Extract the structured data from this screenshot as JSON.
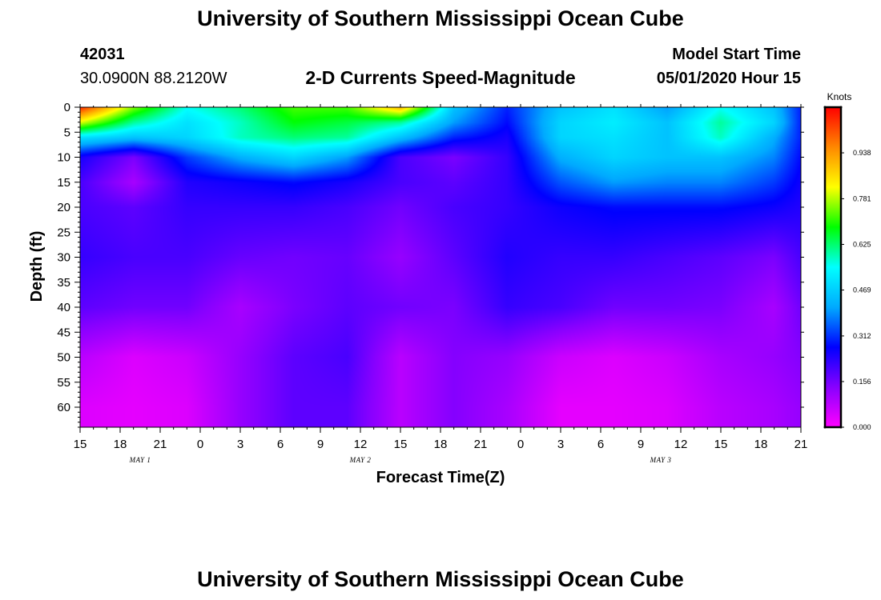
{
  "page": {
    "title_top": "University of Southern Mississippi Ocean Cube",
    "title_bottom": "University of Southern Mississippi Ocean Cube"
  },
  "header": {
    "station_id": "42031",
    "location": "30.0900N 88.2120W",
    "product": "2-D Currents Speed-Magnitude",
    "model_label": "Model Start Time",
    "model_time": "05/01/2020 Hour 15"
  },
  "chart_data": {
    "type": "heatmap",
    "title": "2-D Currents Speed-Magnitude",
    "xlabel": "Forecast Time(Z)",
    "ylabel": "Depth (ft)",
    "x_hours": [
      0,
      3,
      6,
      9,
      12,
      15,
      18,
      21,
      24,
      27,
      30,
      33,
      36,
      39,
      42,
      45,
      48,
      51,
      54
    ],
    "x_tick_labels": [
      "15",
      "18",
      "21",
      "0",
      "3",
      "6",
      "9",
      "12",
      "15",
      "18",
      "21",
      "0",
      "3",
      "6",
      "9",
      "12",
      "15",
      "18",
      "21"
    ],
    "date_labels": [
      {
        "label": "MAY 1",
        "hour": 4.5
      },
      {
        "label": "MAY 2",
        "hour": 21
      },
      {
        "label": "MAY 3",
        "hour": 43.5
      }
    ],
    "y_ticks": [
      0,
      5,
      10,
      15,
      20,
      25,
      30,
      35,
      40,
      45,
      50,
      55,
      60
    ],
    "ylim": [
      0,
      64
    ],
    "colorbar": {
      "unit": "Knots",
      "min": 0.0,
      "max": 1.094,
      "tick_values": [
        0.0,
        0.156,
        0.312,
        0.469,
        0.625,
        0.781,
        0.938
      ],
      "tick_labels": [
        "0.000",
        "0.156",
        "0.312",
        "0.469",
        "0.625",
        "0.781",
        "0.938"
      ],
      "colors": [
        "#ff00ff",
        "#8800ff",
        "#0000ff",
        "#00aaff",
        "#00ffff",
        "#00ff00",
        "#ffff00",
        "#ff8800",
        "#ff0000"
      ]
    },
    "speed_grid": {
      "hours": [
        0,
        4,
        8,
        12,
        16,
        20,
        24,
        28,
        32,
        36,
        40,
        44,
        48,
        52,
        54
      ],
      "depths": [
        0,
        3,
        6,
        10,
        15,
        20,
        30,
        40,
        50,
        60,
        64
      ],
      "values": [
        [
          1.05,
          0.75,
          0.55,
          0.62,
          0.72,
          0.72,
          0.9,
          0.45,
          0.3,
          0.45,
          0.5,
          0.4,
          0.55,
          0.45,
          0.3
        ],
        [
          0.8,
          0.6,
          0.5,
          0.58,
          0.68,
          0.65,
          0.6,
          0.4,
          0.28,
          0.48,
          0.52,
          0.45,
          0.6,
          0.48,
          0.3
        ],
        [
          0.5,
          0.45,
          0.48,
          0.58,
          0.62,
          0.6,
          0.45,
          0.3,
          0.25,
          0.48,
          0.5,
          0.45,
          0.58,
          0.42,
          0.3
        ],
        [
          0.25,
          0.15,
          0.32,
          0.42,
          0.48,
          0.4,
          0.2,
          0.15,
          0.22,
          0.42,
          0.48,
          0.45,
          0.45,
          0.38,
          0.28
        ],
        [
          0.2,
          0.1,
          0.24,
          0.26,
          0.28,
          0.25,
          0.2,
          0.18,
          0.22,
          0.34,
          0.4,
          0.38,
          0.38,
          0.32,
          0.26
        ],
        [
          0.2,
          0.18,
          0.22,
          0.22,
          0.22,
          0.2,
          0.16,
          0.2,
          0.22,
          0.26,
          0.28,
          0.28,
          0.28,
          0.26,
          0.24
        ],
        [
          0.22,
          0.2,
          0.2,
          0.17,
          0.16,
          0.17,
          0.12,
          0.18,
          0.24,
          0.22,
          0.22,
          0.2,
          0.18,
          0.15,
          0.2
        ],
        [
          0.18,
          0.16,
          0.16,
          0.1,
          0.15,
          0.18,
          0.16,
          0.15,
          0.22,
          0.2,
          0.16,
          0.16,
          0.15,
          0.1,
          0.16
        ],
        [
          0.08,
          0.04,
          0.06,
          0.12,
          0.18,
          0.2,
          0.08,
          0.14,
          0.12,
          0.06,
          0.04,
          0.06,
          0.1,
          0.12,
          0.14
        ],
        [
          0.04,
          0.03,
          0.04,
          0.12,
          0.18,
          0.18,
          0.08,
          0.14,
          0.1,
          0.03,
          0.03,
          0.04,
          0.08,
          0.1,
          0.12
        ],
        [
          0.04,
          0.03,
          0.04,
          0.12,
          0.18,
          0.18,
          0.08,
          0.14,
          0.1,
          0.03,
          0.03,
          0.04,
          0.08,
          0.1,
          0.12
        ]
      ]
    }
  }
}
